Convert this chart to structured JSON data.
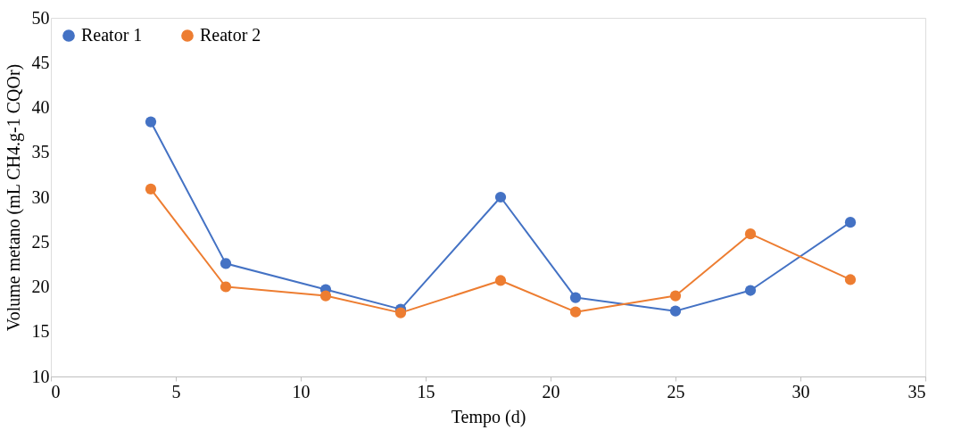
{
  "chart_data": {
    "type": "line",
    "xlabel": "Tempo (d)",
    "ylabel": "Volume metano (mL CH4.g-1 CQOr)",
    "x": [
      4,
      7,
      11,
      14,
      18,
      21,
      25,
      28,
      32
    ],
    "series": [
      {
        "name": "Reator 1",
        "color": "#4472c4",
        "values": [
          38.4,
          22.6,
          19.7,
          17.5,
          30.0,
          18.8,
          17.3,
          19.6,
          27.2
        ]
      },
      {
        "name": "Reator 2",
        "color": "#ed7d31",
        "values": [
          30.9,
          20.0,
          19.0,
          17.1,
          20.7,
          17.2,
          19.0,
          25.9,
          20.8
        ]
      }
    ],
    "xlim": [
      0,
      35
    ],
    "xticks": [
      0,
      5,
      10,
      15,
      20,
      25,
      30,
      35
    ],
    "ylim": [
      10,
      50
    ],
    "yticks": [
      10,
      15,
      20,
      25,
      30,
      35,
      40,
      45,
      50
    ],
    "grid": false,
    "legend": "top left",
    "marker": "circle",
    "line_style": "solid"
  }
}
